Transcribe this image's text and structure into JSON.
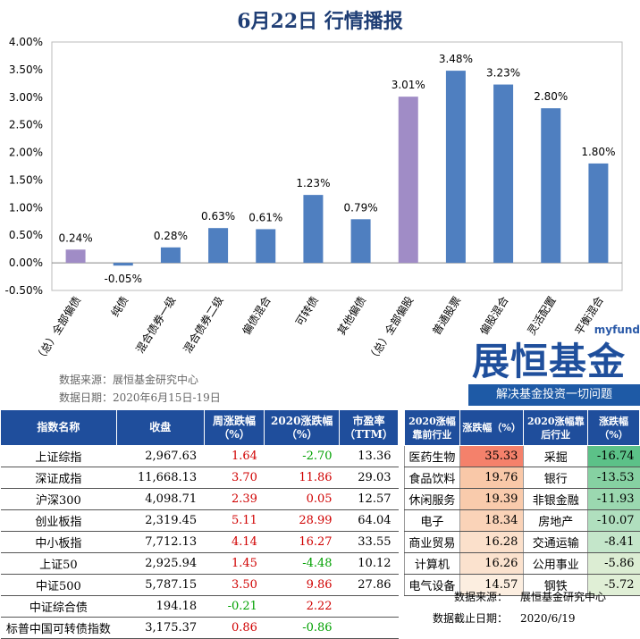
{
  "title": "6月22日  行情播报",
  "source_line": "数据来源：展恒基金研究中心",
  "date_line": "数据日期：2020年6月15日-19日",
  "logo": {
    "brand": "myfund",
    "main": "展恒基金",
    "sub": "解决基金投资一切问题"
  },
  "colors": {
    "bar_blue": "#4f7fc0",
    "bar_purple": "#a08cc6",
    "header_blue": "#1f4e9c"
  },
  "chart_data": {
    "type": "bar",
    "categories": [
      "（总）全部偏债",
      "纯债",
      "混合债券一级",
      "混合债券二级",
      "偏债混合",
      "可转债",
      "其他偏债",
      "（总）全部偏股",
      "普通股票",
      "偏股混合",
      "灵活配置",
      "平衡混合"
    ],
    "values": [
      0.24,
      -0.05,
      0.28,
      0.63,
      0.61,
      1.23,
      0.79,
      3.01,
      3.48,
      3.23,
      2.8,
      1.8
    ],
    "data_labels": [
      "0.24%",
      "-0.05%",
      "0.28%",
      "0.63%",
      "0.61%",
      "1.23%",
      "0.79%",
      "3.01%",
      "3.48%",
      "3.23%",
      "2.80%",
      "1.80%"
    ],
    "highlight": [
      0,
      7
    ],
    "ylim": [
      -0.5,
      4.0
    ],
    "yticks": [
      "-0.50%",
      "0.00%",
      "0.50%",
      "1.00%",
      "1.50%",
      "2.00%",
      "2.50%",
      "3.00%",
      "3.50%",
      "4.00%"
    ],
    "ytick_values": [
      -0.5,
      0,
      0.5,
      1.0,
      1.5,
      2.0,
      2.5,
      3.0,
      3.5,
      4.0
    ],
    "grid": false
  },
  "index_table": {
    "headers": [
      "指数名称",
      "收盘",
      "周涨跌幅（%）",
      "2020涨跌幅（%）",
      "市盈率（TTM）"
    ],
    "rows": [
      {
        "name": "上证综指",
        "close": "2,967.63",
        "week": "1.64",
        "ytd": "-2.70",
        "pe": "13.36"
      },
      {
        "name": "深证成指",
        "close": "11,668.13",
        "week": "3.70",
        "ytd": "11.86",
        "pe": "29.03"
      },
      {
        "name": "沪深300",
        "close": "4,098.71",
        "week": "2.39",
        "ytd": "0.05",
        "pe": "12.57"
      },
      {
        "name": "创业板指",
        "close": "2,319.45",
        "week": "5.11",
        "ytd": "28.99",
        "pe": "64.04"
      },
      {
        "name": "中小板指",
        "close": "7,712.13",
        "week": "4.14",
        "ytd": "16.27",
        "pe": "33.55"
      },
      {
        "name": "上证50",
        "close": "2,925.94",
        "week": "1.45",
        "ytd": "-4.48",
        "pe": "10.12"
      },
      {
        "name": "中证500",
        "close": "5,787.15",
        "week": "3.50",
        "ytd": "9.86",
        "pe": "27.86"
      },
      {
        "name": "中证综合债",
        "close": "194.18",
        "week": "-0.21",
        "ytd": "2.22",
        "pe": ""
      },
      {
        "name": "标普中国可转债指数",
        "close": "3,175.37",
        "week": "0.86",
        "ytd": "-0.86",
        "pe": ""
      }
    ]
  },
  "industry_table": {
    "headers": [
      "2020涨幅靠前行业",
      "涨跌幅（%）",
      "2020涨幅靠后行业",
      "涨跌幅（%）"
    ],
    "rows": [
      {
        "top": "医药生物",
        "top_val": "35.33",
        "bottom": "采掘",
        "bottom_val": "-16.74",
        "top_color": "#f4816b",
        "bottom_color": "#5cc188"
      },
      {
        "top": "食品饮料",
        "top_val": "19.76",
        "bottom": "银行",
        "bottom_val": "-13.53",
        "top_color": "#f9c8a8",
        "bottom_color": "#86d1a2"
      },
      {
        "top": "休闲服务",
        "top_val": "19.39",
        "bottom": "非银金融",
        "bottom_val": "-11.93",
        "top_color": "#f9cbac",
        "bottom_color": "#9bd8b0"
      },
      {
        "top": "电子",
        "top_val": "18.34",
        "bottom": "房地产",
        "bottom_val": "-10.07",
        "top_color": "#fad3b8",
        "bottom_color": "#b0dfbe"
      },
      {
        "top": "商业贸易",
        "top_val": "16.28",
        "bottom": "交通运输",
        "bottom_val": "-8.41",
        "top_color": "#fbe0cb",
        "bottom_color": "#c4e6ca"
      },
      {
        "top": "计算机",
        "top_val": "16.26",
        "bottom": "公用事业",
        "bottom_val": "-5.86",
        "top_color": "#fbe2ce",
        "bottom_color": "#dcedd3"
      },
      {
        "top": "电气设备",
        "top_val": "14.57",
        "bottom": "钢铁",
        "bottom_val": "-5.72",
        "top_color": "#fceee0",
        "bottom_color": "#e0efd6"
      }
    ],
    "source_key": "数据来源：",
    "source_val": "展恒基金研究中心",
    "date_key": "数据截止日期：",
    "date_val": "2020/6/19"
  }
}
